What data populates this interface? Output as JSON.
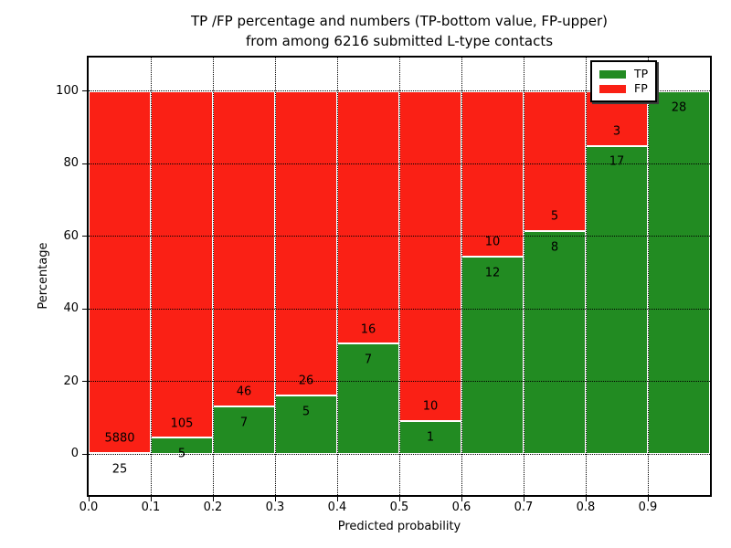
{
  "title": {
    "line1": "TP /FP percentage and numbers (TP-bottom value, FP-upper)",
    "line2": "from among 6216 submitted L-type contacts"
  },
  "axes": {
    "xlabel": "Predicted probability",
    "ylabel": "Percentage"
  },
  "legend": {
    "position": "upper right",
    "items": [
      {
        "label": "TP",
        "color": "#228b22"
      },
      {
        "label": "FP",
        "color": "#fa2015"
      }
    ]
  },
  "chart_data": {
    "type": "bar",
    "subtype": "stacked-100-percent",
    "title": "TP /FP percentage and numbers (TP-bottom value, FP-upper) from among 6216 submitted L-type contacts",
    "xlabel": "Predicted probability",
    "ylabel": "Percentage",
    "grid": "dotted",
    "legend_position": "upper right",
    "bin_width": 0.1,
    "xlim": [
      0.0,
      1.0
    ],
    "ylim": [
      -11.2,
      109.3
    ],
    "x_tick_labels": [
      "0.0",
      "0.1",
      "0.2",
      "0.3",
      "0.4",
      "0.5",
      "0.6",
      "0.7",
      "0.8",
      "0.9"
    ],
    "y_ticks": [
      0,
      20,
      40,
      60,
      80,
      100
    ],
    "y_tick_labels": [
      "0",
      "20",
      "40",
      "60",
      "80",
      "100"
    ],
    "categories": [
      "0.0-0.1",
      "0.1-0.2",
      "0.2-0.3",
      "0.3-0.4",
      "0.4-0.5",
      "0.5-0.6",
      "0.6-0.7",
      "0.7-0.8",
      "0.8-0.9",
      "0.9-1.0"
    ],
    "series": [
      {
        "name": "TP",
        "color": "#228b22",
        "counts": [
          25,
          5,
          7,
          5,
          7,
          1,
          12,
          8,
          17,
          28
        ]
      },
      {
        "name": "FP",
        "color": "#fa2015",
        "counts": [
          5880,
          105,
          46,
          26,
          16,
          10,
          10,
          5,
          3,
          0
        ]
      }
    ],
    "bar_labels": {
      "tp": [
        "25",
        "5",
        "7",
        "5",
        "7",
        "1",
        "12",
        "8",
        "17",
        "28"
      ],
      "fp": [
        "5880",
        "105",
        "46",
        "26",
        "16",
        "10",
        "10",
        "5",
        "3",
        ""
      ]
    }
  }
}
